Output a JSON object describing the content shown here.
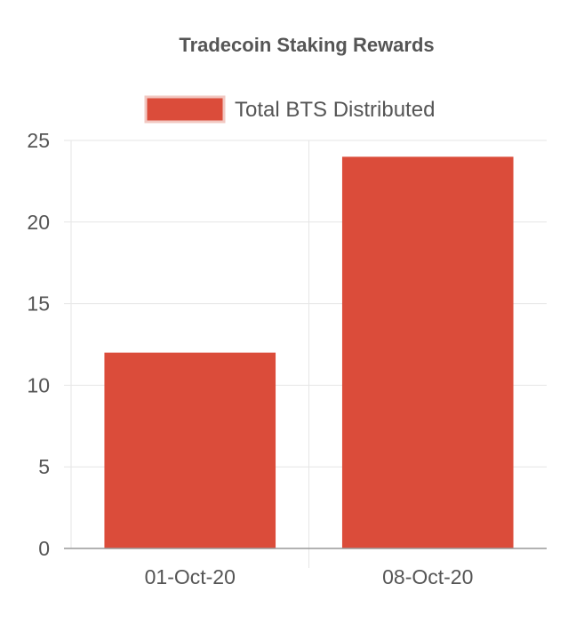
{
  "chart_data": {
    "type": "bar",
    "title": "Tradecoin Staking Rewards",
    "categories": [
      "01-Oct-20",
      "08-Oct-20"
    ],
    "series": [
      {
        "name": "Total BTS Distributed",
        "values": [
          12,
          24
        ],
        "color": "#db4c3a"
      }
    ],
    "ylim": [
      0,
      25
    ],
    "yticks": [
      0,
      5,
      10,
      15,
      20,
      25
    ],
    "xlabel": "",
    "ylabel": "",
    "grid": true,
    "legend_position": "top"
  }
}
